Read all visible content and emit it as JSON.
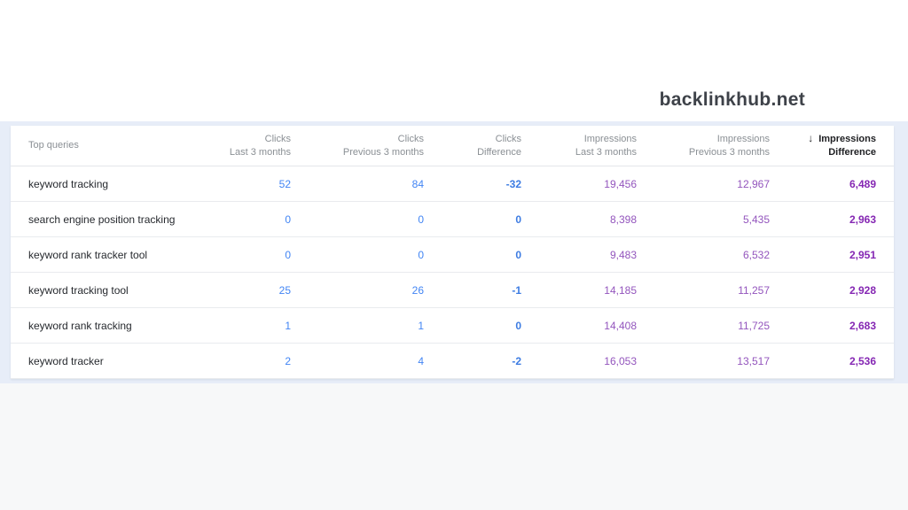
{
  "brand": {
    "name": "backlinkhub.net"
  },
  "table": {
    "sort_icon": "↓",
    "sorted_column": "Impressions Difference",
    "columns": [
      {
        "id": "query",
        "line1": "Top queries",
        "line2": ""
      },
      {
        "id": "clicks_last",
        "line1": "Clicks",
        "line2": "Last 3 months"
      },
      {
        "id": "clicks_prev",
        "line1": "Clicks",
        "line2": "Previous 3 months"
      },
      {
        "id": "clicks_diff",
        "line1": "Clicks",
        "line2": "Difference"
      },
      {
        "id": "impr_last",
        "line1": "Impressions",
        "line2": "Last 3 months"
      },
      {
        "id": "impr_prev",
        "line1": "Impressions",
        "line2": "Previous 3 months"
      },
      {
        "id": "impr_diff",
        "line1": "Impressions",
        "line2": "Difference"
      }
    ],
    "rows": [
      {
        "query": "keyword tracking",
        "clicks_last": "52",
        "clicks_prev": "84",
        "clicks_diff": "-32",
        "impr_last": "19,456",
        "impr_prev": "12,967",
        "impr_diff": "6,489"
      },
      {
        "query": "search engine position tracking",
        "clicks_last": "0",
        "clicks_prev": "0",
        "clicks_diff": "0",
        "impr_last": "8,398",
        "impr_prev": "5,435",
        "impr_diff": "2,963"
      },
      {
        "query": "keyword rank tracker tool",
        "clicks_last": "0",
        "clicks_prev": "0",
        "clicks_diff": "0",
        "impr_last": "9,483",
        "impr_prev": "6,532",
        "impr_diff": "2,951"
      },
      {
        "query": "keyword tracking tool",
        "clicks_last": "25",
        "clicks_prev": "26",
        "clicks_diff": "-1",
        "impr_last": "14,185",
        "impr_prev": "11,257",
        "impr_diff": "2,928"
      },
      {
        "query": "keyword rank tracking",
        "clicks_last": "1",
        "clicks_prev": "1",
        "clicks_diff": "0",
        "impr_last": "14,408",
        "impr_prev": "11,725",
        "impr_diff": "2,683"
      },
      {
        "query": "keyword tracker",
        "clicks_last": "2",
        "clicks_prev": "4",
        "clicks_diff": "-2",
        "impr_last": "16,053",
        "impr_prev": "13,517",
        "impr_diff": "2,536"
      }
    ]
  },
  "colors": {
    "brand-text": "#3e4249",
    "page-band": "#e7edf8",
    "below-band": "#f7f8f9",
    "card-bg": "#ffffff",
    "header-text": "#8a8f94",
    "sorted-header-text": "#202124",
    "header-border": "#e3e6ea",
    "row-border": "#e9ebee",
    "query-text": "#26292e",
    "clicks": "#4285f4",
    "clicks-diff": "#3d7ce2",
    "impressions": "#9355bd",
    "impressions-diff": "#8527b3"
  }
}
